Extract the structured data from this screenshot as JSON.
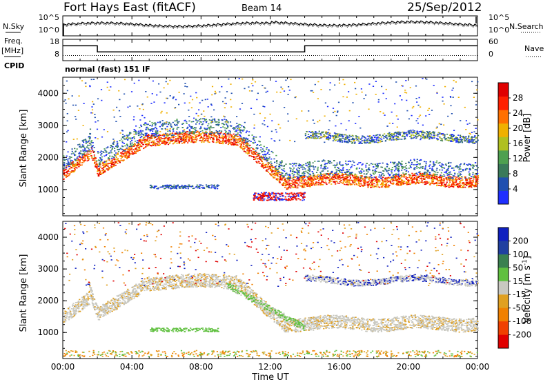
{
  "header": {
    "station": "Fort Hays East (fitACF)",
    "beam": "Beam 14",
    "date": "25/Sep/2012"
  },
  "chart_data": [
    {
      "type": "line",
      "panel": "noise",
      "left_label": "N.Sky",
      "right_label": "N.Search",
      "y_left_ticks": [
        "10^5",
        "10^0"
      ],
      "y_right_ticks": [
        "10^5",
        "10^0"
      ],
      "x_range": [
        0,
        24
      ]
    },
    {
      "type": "line",
      "panel": "frequency",
      "left_label": "Freq.",
      "left_unit": "[MHz]",
      "right_label": "Nave",
      "cpid_label": "CPID",
      "cpid_text": "normal (fast) 151 IF",
      "y_left_ticks": [
        "18",
        "8"
      ],
      "y_right_ticks": [
        "60",
        "0"
      ],
      "series": [
        {
          "name": "Freq.",
          "x": [
            0,
            2,
            2,
            14,
            14,
            24
          ],
          "y": [
            14.5,
            14.5,
            10.8,
            10.8,
            14.5,
            14.5
          ]
        },
        {
          "name": "Nave",
          "x": [
            0,
            24
          ],
          "y": [
            5,
            5
          ]
        }
      ]
    },
    {
      "type": "heatmap",
      "panel": "power",
      "ylabel": "Slant Range [km]",
      "ylim": [
        180,
        4500
      ],
      "y_ticks": [
        "1000",
        "2000",
        "3000",
        "4000"
      ],
      "colorbar_label": "Power [dB]",
      "colorbar_ticks": [
        "4",
        "8",
        "12",
        "16",
        "20",
        "24",
        "28"
      ],
      "colors": [
        "#1f2fff",
        "#2050b0",
        "#3a7a5a",
        "#4ea050",
        "#b0c020",
        "#f0b000",
        "#ff7000",
        "#ff2000",
        "#e00000"
      ]
    },
    {
      "type": "heatmap",
      "panel": "velocity",
      "ylabel": "Slant Range [km]",
      "ylim": [
        180,
        4500
      ],
      "y_ticks": [
        "1000",
        "2000",
        "3000",
        "4000"
      ],
      "colorbar_label": "Velocity [m s",
      "colorbar_exp": "-1",
      "colorbar_ticks": [
        "200",
        "100",
        "50",
        "15",
        "-15",
        "-50",
        "-100",
        "-200"
      ],
      "colors": [
        "#1020c0",
        "#2040a0",
        "#3a8050",
        "#60c040",
        "#c8c8c0",
        "#e0a020",
        "#f08000",
        "#f04000",
        "#e00000"
      ]
    }
  ],
  "x_axis": {
    "label": "Time UT",
    "ticks": [
      "00:00",
      "04:00",
      "08:00",
      "12:00",
      "16:00",
      "20:00",
      "00:00"
    ]
  }
}
